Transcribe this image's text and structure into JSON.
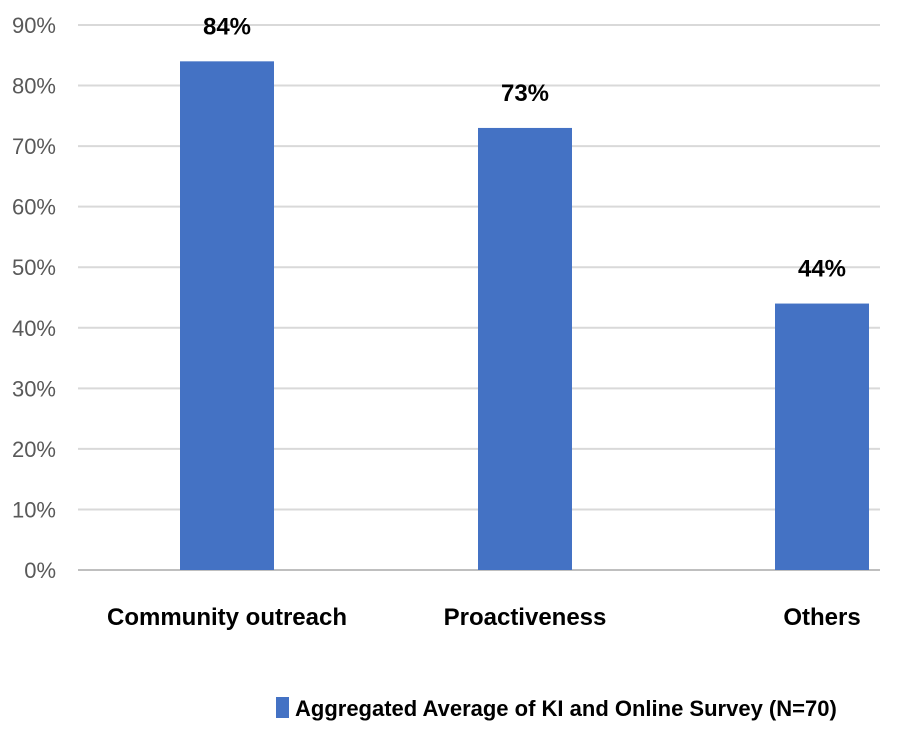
{
  "chart_data": {
    "type": "bar",
    "categories": [
      "Community outreach",
      "Proactiveness",
      "Others"
    ],
    "series": [
      {
        "name": "Aggregated Average of KI and Online Survey (N=70)",
        "values": [
          84,
          73,
          44
        ],
        "data_labels": [
          "84%",
          "73%",
          "44%"
        ],
        "color": "#4472c4"
      }
    ],
    "y_ticks": [
      "0%",
      "10%",
      "20%",
      "30%",
      "40%",
      "50%",
      "60%",
      "70%",
      "80%",
      "90%"
    ],
    "ylim": [
      0,
      90
    ],
    "grid": true,
    "legend_position": "bottom",
    "title": "",
    "xlabel": "",
    "ylabel": ""
  }
}
